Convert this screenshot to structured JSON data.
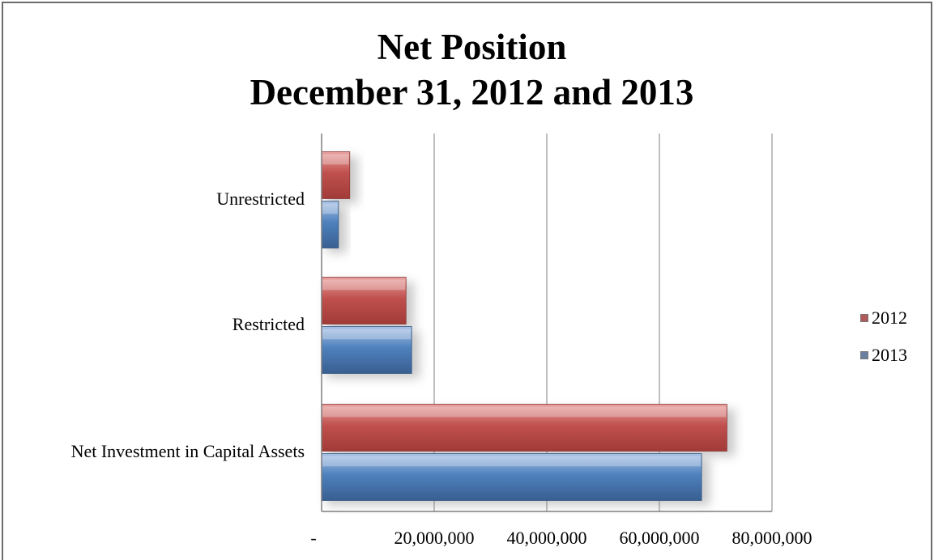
{
  "chart_data": {
    "type": "bar",
    "orientation": "horizontal",
    "title_line1": "Net Position",
    "title_line2": "December 31, 2012 and 2013",
    "categories": [
      "Unrestricted",
      "Restricted",
      "Net Investment in Capital Assets"
    ],
    "series": [
      {
        "name": "2012",
        "color": "#c0504d",
        "values": [
          5000000,
          15000000,
          72000000
        ]
      },
      {
        "name": "2013",
        "color": "#4f81bd",
        "values": [
          3000000,
          16000000,
          67500000
        ]
      }
    ],
    "x_ticks": [
      0,
      20000000,
      40000000,
      60000000,
      80000000
    ],
    "x_tick_labels": [
      "-",
      "20,000,000",
      "40,000,000",
      "60,000,000",
      "80,000,000"
    ],
    "xlim": [
      0,
      80000000
    ],
    "grid": true,
    "legend_position": "right"
  }
}
